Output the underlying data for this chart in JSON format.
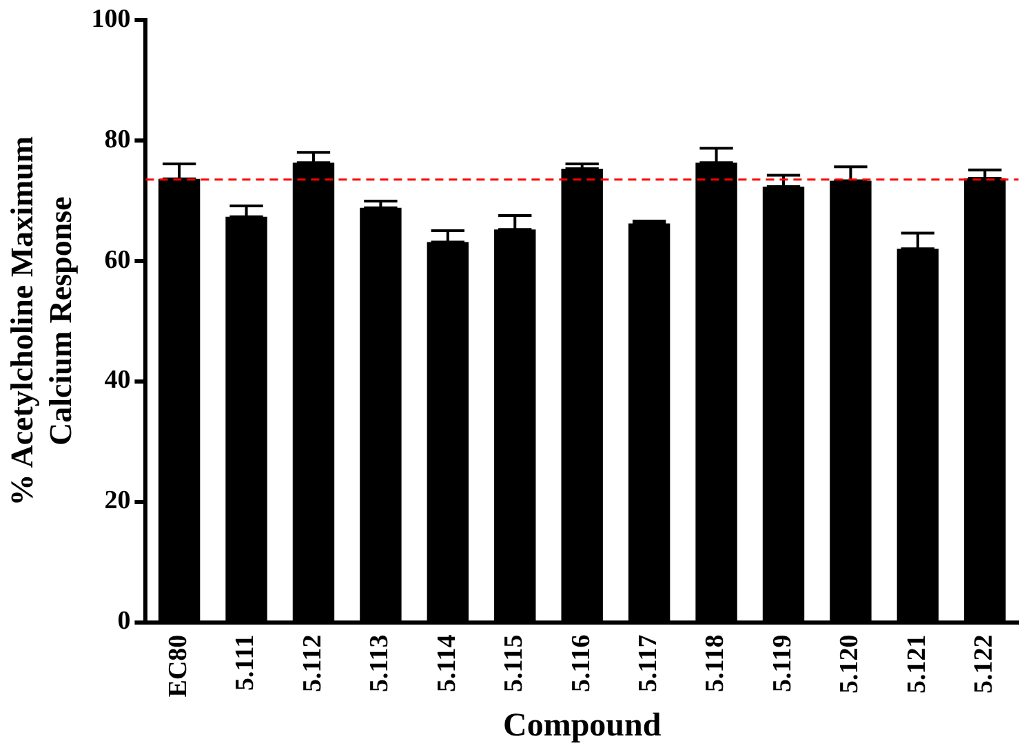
{
  "chart_data": {
    "type": "bar",
    "xlabel": "Compound",
    "ylabel": "% Acetylcholine Maximum\nCalcium Response",
    "categories": [
      "EC80",
      "5.111",
      "5.112",
      "5.113",
      "5.114",
      "5.115",
      "5.116",
      "5.117",
      "5.118",
      "5.119",
      "5.120",
      "5.121",
      "5.122"
    ],
    "values": [
      73.6,
      67.3,
      76.3,
      68.8,
      63.1,
      65.2,
      75.3,
      66.2,
      76.3,
      72.3,
      73.3,
      62.0,
      73.7
    ],
    "errors": [
      [
        73.6,
        76.1
      ],
      [
        67.3,
        69.1
      ],
      [
        76.3,
        78.0
      ],
      [
        68.8,
        69.9
      ],
      [
        63.1,
        65.0
      ],
      [
        65.2,
        67.5
      ],
      [
        75.3,
        76.1
      ],
      [
        66.2,
        66.6
      ],
      [
        76.3,
        78.7
      ],
      [
        72.3,
        74.2
      ],
      [
        73.3,
        75.6
      ],
      [
        62.0,
        64.6
      ],
      [
        73.7,
        75.1
      ]
    ],
    "color": "#000000",
    "ylim": [
      0,
      100
    ],
    "yticks": [
      0,
      20,
      40,
      60,
      80,
      100
    ],
    "grid": false,
    "legend": false,
    "ref_lines": [
      {
        "axis": "y",
        "value": 73.5,
        "color": "#ff0000",
        "line_style": "dashed"
      }
    ]
  }
}
